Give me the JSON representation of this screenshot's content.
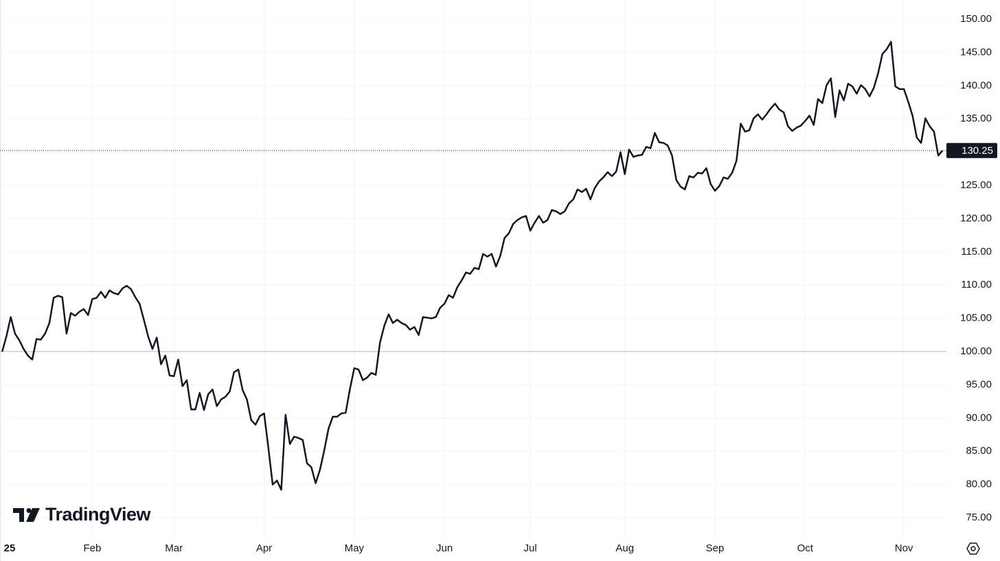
{
  "chart_data": {
    "type": "line",
    "watermark": "TradingView",
    "color": "#131722",
    "grid": true,
    "reference_line": 100,
    "xlim": [
      -0.5,
      219.9
    ],
    "xticks": [
      {
        "value": 0,
        "label": "25"
      },
      {
        "value": 21,
        "label": "Feb"
      },
      {
        "value": 40,
        "label": "Mar"
      },
      {
        "value": 61,
        "label": "Apr"
      },
      {
        "value": 82,
        "label": "May"
      },
      {
        "value": 103,
        "label": "Jun"
      },
      {
        "value": 123,
        "label": "Jul"
      },
      {
        "value": 145,
        "label": "Aug"
      },
      {
        "value": 166,
        "label": "Sep"
      },
      {
        "value": 187,
        "label": "Oct"
      },
      {
        "value": 210,
        "label": "Nov"
      }
    ],
    "ylim": [
      71.8,
      152.9
    ],
    "yticks": [
      {
        "value": 75,
        "label": "75.00"
      },
      {
        "value": 80,
        "label": "80.00"
      },
      {
        "value": 85,
        "label": "85.00"
      },
      {
        "value": 90,
        "label": "90.00"
      },
      {
        "value": 95,
        "label": "95.00"
      },
      {
        "value": 100,
        "label": "100.00"
      },
      {
        "value": 105,
        "label": "105.00"
      },
      {
        "value": 110,
        "label": "110.00"
      },
      {
        "value": 115,
        "label": "115.00"
      },
      {
        "value": 120,
        "label": "120.00"
      },
      {
        "value": 125,
        "label": "125.00"
      },
      {
        "value": 130,
        "label": "130.00"
      },
      {
        "value": 135,
        "label": "135.00"
      },
      {
        "value": 140,
        "label": "140.00"
      },
      {
        "value": 145,
        "label": "145.00"
      },
      {
        "value": 150,
        "label": "150.00"
      }
    ],
    "values": [
      100.0,
      102.3,
      105.2,
      102.7,
      101.7,
      100.4,
      99.4,
      98.8,
      101.9,
      101.8,
      102.7,
      104.3,
      108.1,
      108.4,
      108.2,
      102.7,
      105.8,
      105.4,
      106.0,
      106.4,
      105.5,
      107.9,
      108.1,
      109.0,
      108.1,
      109.2,
      108.8,
      108.6,
      109.5,
      109.9,
      109.4,
      108.2,
      107.2,
      104.8,
      102.3,
      100.4,
      102.1,
      98.1,
      99.4,
      96.4,
      96.3,
      98.8,
      94.8,
      95.7,
      91.3,
      91.3,
      93.8,
      91.2,
      93.6,
      94.3,
      91.8,
      92.8,
      93.2,
      94.0,
      96.9,
      97.3,
      94.2,
      92.8,
      89.7,
      89.0,
      90.3,
      90.7,
      85.5,
      80.0,
      80.6,
      79.2,
      90.5,
      86.1,
      87.2,
      87.0,
      86.7,
      83.2,
      82.6,
      80.2,
      82.2,
      85.1,
      88.4,
      90.2,
      90.2,
      90.7,
      90.8,
      94.4,
      97.5,
      97.3,
      95.7,
      96.1,
      96.8,
      96.5,
      101.4,
      103.9,
      105.6,
      104.3,
      104.8,
      104.3,
      104.0,
      103.3,
      103.7,
      102.5,
      105.2,
      105.1,
      105.0,
      105.2,
      106.6,
      107.2,
      108.5,
      108.1,
      109.7,
      110.7,
      111.9,
      111.7,
      112.6,
      112.4,
      114.7,
      114.3,
      114.7,
      112.8,
      114.4,
      117.1,
      117.8,
      119.2,
      119.8,
      120.2,
      120.4,
      118.2,
      119.4,
      120.4,
      119.4,
      119.8,
      121.3,
      121.1,
      120.7,
      121.1,
      122.3,
      122.9,
      124.4,
      124.0,
      124.5,
      122.9,
      124.6,
      125.6,
      126.2,
      127.0,
      126.4,
      127.1,
      130.0,
      126.7,
      130.4,
      129.3,
      129.5,
      129.6,
      130.8,
      130.6,
      132.9,
      131.5,
      131.4,
      131.0,
      129.5,
      125.8,
      124.8,
      124.4,
      126.4,
      126.2,
      126.9,
      126.8,
      127.6,
      125.2,
      124.2,
      124.9,
      126.2,
      126.0,
      126.9,
      128.7,
      134.3,
      133.1,
      133.3,
      135.1,
      135.7,
      134.9,
      135.7,
      136.6,
      137.3,
      136.4,
      136.0,
      133.9,
      133.2,
      133.7,
      134.0,
      134.7,
      135.5,
      134.1,
      138.0,
      137.4,
      140.1,
      141.1,
      135.3,
      139.3,
      137.8,
      140.3,
      139.9,
      138.8,
      140.1,
      139.5,
      138.4,
      139.7,
      141.9,
      144.8,
      145.5,
      146.6,
      139.9,
      139.5,
      139.5,
      137.6,
      135.5,
      132.2,
      131.4,
      135.1,
      133.9,
      133.1,
      129.5,
      130.25
    ]
  }
}
